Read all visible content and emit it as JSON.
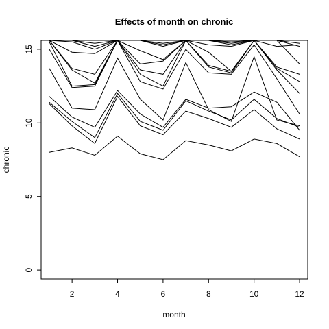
{
  "chart_data": {
    "type": "line",
    "title": "Effects of month on chronic",
    "xlabel": "month",
    "ylabel": "chronic",
    "xlim": [
      0.64,
      12.36
    ],
    "ylim": [
      -0.6,
      15.6
    ],
    "x_ticks": [
      2,
      4,
      6,
      8,
      10,
      12
    ],
    "y_ticks": [
      0,
      5,
      10,
      15
    ],
    "grid": false,
    "legend": "none",
    "x": [
      1,
      2,
      3,
      4,
      5,
      6,
      7,
      8,
      9,
      10,
      11,
      12
    ],
    "series": [
      {
        "values": [
          8.0,
          8.3,
          7.8,
          9.1,
          7.9,
          7.5,
          8.8,
          8.5,
          8.1,
          8.9,
          8.6,
          7.7
        ]
      },
      {
        "values": [
          11.3,
          9.8,
          8.6,
          11.8,
          9.8,
          9.2,
          10.8,
          10.3,
          9.7,
          10.9,
          9.6,
          8.9
        ]
      },
      {
        "values": [
          11.4,
          10.1,
          9.0,
          12.0,
          10.1,
          9.5,
          11.5,
          10.8,
          10.2,
          11.6,
          10.3,
          9.7
        ]
      },
      {
        "values": [
          11.8,
          10.4,
          9.7,
          12.2,
          10.6,
          9.7,
          11.6,
          11.0,
          11.1,
          12.1,
          11.4,
          9.5
        ]
      },
      {
        "values": [
          13.7,
          11.0,
          10.9,
          14.4,
          11.6,
          10.2,
          14.1,
          10.9,
          10.1,
          14.5,
          10.2,
          9.8
        ]
      },
      {
        "values": [
          15.0,
          12.4,
          12.5,
          15.6,
          12.8,
          12.3,
          15.0,
          13.4,
          13.3,
          15.3,
          13.0,
          10.6
        ]
      },
      {
        "values": [
          15.5,
          12.5,
          12.6,
          15.6,
          13.3,
          12.5,
          15.6,
          13.8,
          13.4,
          15.6,
          13.6,
          12.0
        ]
      },
      {
        "values": [
          15.6,
          13.6,
          12.7,
          15.6,
          13.6,
          13.3,
          15.6,
          13.9,
          13.5,
          15.6,
          13.7,
          12.8
        ]
      },
      {
        "values": [
          15.6,
          13.7,
          13.3,
          15.6,
          14.0,
          14.2,
          15.6,
          14.8,
          13.5,
          15.6,
          13.8,
          13.3
        ]
      },
      {
        "values": [
          15.6,
          15.5,
          15.0,
          15.6,
          15.6,
          15.2,
          15.6,
          15.6,
          15.3,
          15.6,
          15.6,
          14.0
        ]
      },
      {
        "values": [
          15.6,
          15.6,
          15.2,
          15.6,
          15.6,
          15.3,
          15.6,
          15.6,
          15.4,
          15.6,
          15.6,
          15.2
        ]
      },
      {
        "values": [
          15.6,
          15.6,
          15.4,
          15.6,
          15.6,
          15.4,
          15.6,
          15.6,
          15.5,
          15.6,
          15.6,
          15.4
        ]
      },
      {
        "values": [
          15.6,
          14.8,
          14.7,
          15.6,
          14.9,
          14.3,
          15.6,
          15.3,
          15.2,
          15.6,
          15.2,
          15.3
        ]
      }
    ]
  }
}
